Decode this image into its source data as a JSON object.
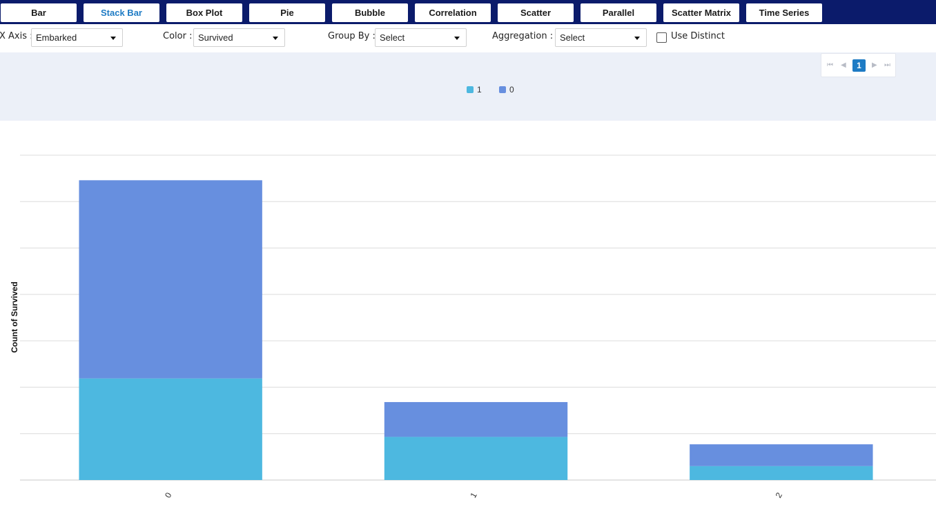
{
  "tabs": [
    {
      "label": "Bar",
      "active": false
    },
    {
      "label": "Stack Bar",
      "active": true
    },
    {
      "label": "Box Plot",
      "active": false
    },
    {
      "label": "Pie",
      "active": false
    },
    {
      "label": "Bubble",
      "active": false
    },
    {
      "label": "Correlation",
      "active": false
    },
    {
      "label": "Scatter",
      "active": false
    },
    {
      "label": "Parallel",
      "active": false
    },
    {
      "label": "Scatter Matrix",
      "active": false
    },
    {
      "label": "Time Series",
      "active": false
    }
  ],
  "controls": {
    "x_axis": {
      "label": "X Axis :",
      "value": "Embarked"
    },
    "color": {
      "label": "Color :",
      "value": "Survived"
    },
    "group_by": {
      "label": "Group By :",
      "value": "Select"
    },
    "aggregation": {
      "label": "Aggregation :",
      "value": "Select"
    },
    "use_distinct": {
      "label": "Use Distinct",
      "checked": false
    }
  },
  "pager": {
    "current_page": "1"
  },
  "colors": {
    "header_bg": "#0b1b6b",
    "active_tab": "#1e7bc4",
    "series_1": "#4db8e0",
    "series_0": "#678fdf",
    "legend_band": "#ecf0f8",
    "grid": "#dcdcdc"
  },
  "chart_data": {
    "type": "bar",
    "stacked": true,
    "categories": [
      "0",
      "1",
      "2"
    ],
    "series": [
      {
        "name": "1",
        "values": [
          219,
          93,
          30
        ]
      },
      {
        "name": "0",
        "values": [
          427,
          75,
          47
        ]
      }
    ],
    "xlabel": "",
    "ylabel": "Count of Survived",
    "ylim": [
      0,
      700
    ],
    "grid": true,
    "legend_position": "top-center",
    "x_tick_rotation": 300
  }
}
